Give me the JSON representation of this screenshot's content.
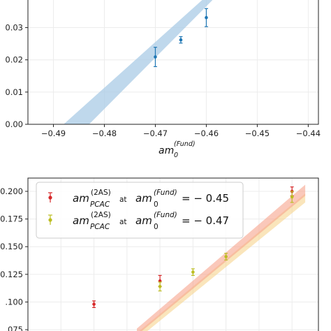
{
  "chart_data": [
    {
      "type": "scatter",
      "title": "",
      "xlabel": {
        "main": "am",
        "sub": "0",
        "sup": "(Fund)"
      },
      "ylabel": "",
      "xlim": [
        -0.495,
        -0.438
      ],
      "ylim": [
        0.0,
        0.039
      ],
      "xticks": [
        -0.49,
        -0.48,
        -0.47,
        -0.46,
        -0.45,
        -0.44
      ],
      "xtick_labels": [
        "−0.49",
        "−0.48",
        "−0.47",
        "−0.46",
        "−0.45",
        "−0.44"
      ],
      "yticks": [
        0.0,
        0.01,
        0.02,
        0.03
      ],
      "ytick_labels": [
        "0.00",
        "0.01",
        "0.02",
        "0.03"
      ],
      "grid": true,
      "color": "#1f77b4",
      "band_color": "#9ec6e6",
      "series": [
        {
          "x": [
            -0.47,
            -0.465,
            -0.46
          ],
          "y": [
            0.0209,
            0.0262,
            0.0331
          ],
          "err": [
            0.003,
            0.001,
            0.0028
          ]
        }
      ],
      "fit_band": {
        "x": [
          -0.488,
          -0.483,
          -0.458
        ],
        "lower": [
          0.0,
          0.0,
          0.039
        ],
        "upper": [
          0.0,
          0.0,
          0.039
        ]
      }
    },
    {
      "type": "scatter",
      "title": "",
      "xlabel": "",
      "ylabel": "",
      "ylim": [
        0.07,
        0.212
      ],
      "yticks": [
        0.075,
        0.1,
        0.125,
        0.15,
        0.175,
        0.2
      ],
      "ytick_labels": [
        ".075",
        ".100",
        "0.125",
        "0.150",
        "0.175",
        "0.200"
      ],
      "grid": true,
      "legend": "top-left",
      "series": [
        {
          "name": {
            "main": "am",
            "sub": "PCAC",
            "sup": "(2AS)",
            "mid": "at",
            "main2": "am",
            "sub2": "0",
            "sup2": "(Fund)",
            "eq": "= − 0.45"
          },
          "color": "#d62728",
          "band_color": "#f4a582",
          "x": [
            0.2,
            0.4,
            0.8
          ],
          "y": [
            0.098,
            0.119,
            0.2
          ],
          "err": [
            0.003,
            0.005,
            0.004
          ]
        },
        {
          "name": {
            "main": "am",
            "sub": "PCAC",
            "sup": "(2AS)",
            "mid": "at",
            "main2": "am",
            "sub2": "0",
            "sup2": "(Fund)",
            "eq": "= − 0.47"
          },
          "color": "#bcbd22",
          "band_color": "#f0d48a",
          "x": [
            0.4,
            0.5,
            0.6,
            0.8
          ],
          "y": [
            0.114,
            0.127,
            0.141,
            0.195
          ],
          "err": [
            0.004,
            0.003,
            0.003,
            0.005
          ]
        }
      ]
    }
  ]
}
